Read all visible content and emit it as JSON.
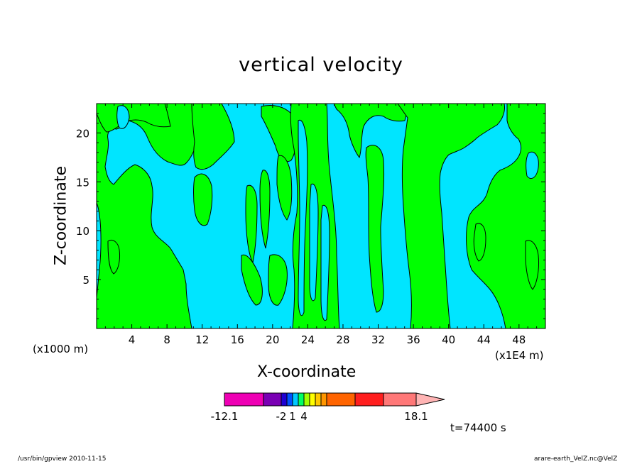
{
  "chart_data": {
    "type": "contour",
    "title": "vertical velocity",
    "xlabel": "X-coordinate",
    "ylabel": "Z-coordinate",
    "x_unit_note": "(x1000 m)",
    "x_scale_note": "(x1E4 m)",
    "xlim": [
      0,
      51
    ],
    "ylim": [
      0,
      23
    ],
    "x_ticks": [
      "4",
      "8",
      "12",
      "16",
      "20",
      "24",
      "28",
      "32",
      "36",
      "40",
      "44",
      "48"
    ],
    "y_ticks": [
      "5",
      "10",
      "15",
      "20"
    ],
    "x_tick_values": [
      4,
      8,
      12,
      16,
      20,
      24,
      28,
      32,
      36,
      40,
      44,
      48
    ],
    "y_tick_values": [
      5,
      10,
      15,
      20
    ],
    "fill_colors": {
      "positive": "#00ff00",
      "negative": "#00e5ff"
    },
    "regions": [
      {
        "sign": "negative",
        "x": [
          0,
          1
        ],
        "z": [
          0,
          23
        ]
      },
      {
        "sign": "positive",
        "x": [
          1,
          3
        ],
        "z": [
          0,
          23
        ]
      },
      {
        "sign": "negative",
        "x": [
          3,
          4.5
        ],
        "z": [
          1,
          20
        ]
      },
      {
        "sign": "positive",
        "x": [
          4.5,
          11
        ],
        "z": [
          0,
          23
        ]
      },
      {
        "sign": "negative",
        "x": [
          5,
          8
        ],
        "z": [
          15,
          22
        ]
      },
      {
        "sign": "negative",
        "x": [
          11,
          19
        ],
        "z": [
          0,
          21
        ]
      },
      {
        "sign": "positive",
        "x": [
          19,
          27.5
        ],
        "z": [
          0,
          23
        ]
      },
      {
        "sign": "negative",
        "x": [
          27.5,
          36
        ],
        "z": [
          0,
          23
        ]
      },
      {
        "sign": "positive",
        "x": [
          36,
          39.5
        ],
        "z": [
          0,
          23
        ]
      },
      {
        "sign": "negative",
        "x": [
          39.5,
          47
        ],
        "z": [
          0,
          23
        ]
      },
      {
        "sign": "positive",
        "x": [
          47,
          51
        ],
        "z": [
          0,
          23
        ]
      }
    ],
    "colorbar": {
      "colors": [
        "#ee00b4",
        "#7a00b4",
        "#1e00d2",
        "#0050ff",
        "#00c8ff",
        "#00ff64",
        "#a0ff00",
        "#ffff00",
        "#ffc800",
        "#ff9600",
        "#ff6400",
        "#ff1e1e",
        "#ff7878",
        "#ffb4b4"
      ],
      "labels": [
        "-12.1",
        "-2",
        "1",
        "4",
        "18.1"
      ]
    },
    "time_label": "t=74400 s"
  },
  "footer": {
    "left": "/usr/bin/gpview 2010-11-15",
    "right": "arare-earth_VelZ.nc@VelZ"
  }
}
